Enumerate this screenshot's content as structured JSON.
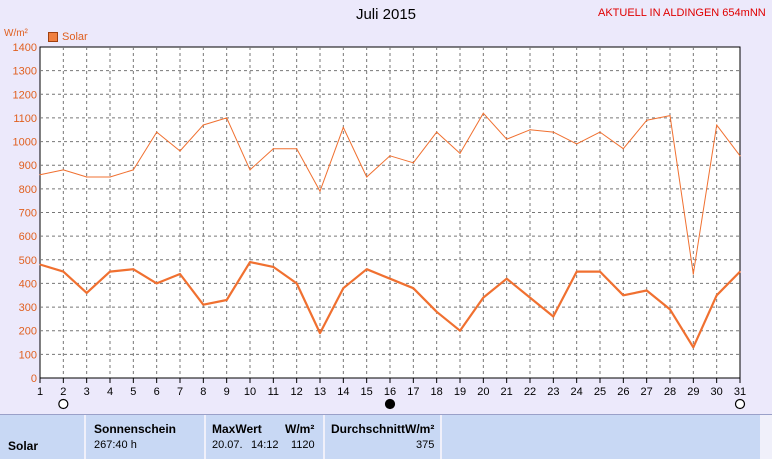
{
  "title": "Juli 2015",
  "station": "AKTUELL IN ALDINGEN 654mNN",
  "unit": "W/m²",
  "legend_label": "Solar",
  "chart_data": {
    "type": "line",
    "title": "Juli 2015",
    "ylabel": "W/m²",
    "ylim": [
      0,
      1400
    ],
    "yticks": [
      0,
      100,
      200,
      300,
      400,
      500,
      600,
      700,
      800,
      900,
      1000,
      1100,
      1200,
      1300,
      1400
    ],
    "x": [
      1,
      2,
      3,
      4,
      5,
      6,
      7,
      8,
      9,
      10,
      11,
      12,
      13,
      14,
      15,
      16,
      17,
      18,
      19,
      20,
      21,
      22,
      23,
      24,
      25,
      26,
      27,
      28,
      29,
      30,
      31
    ],
    "grid": true,
    "legend": "top-left",
    "series": [
      {
        "name": "Solar",
        "color": "#f07030",
        "style": "thin",
        "values": [
          860,
          880,
          850,
          850,
          880,
          1040,
          960,
          1070,
          1100,
          880,
          970,
          970,
          790,
          1060,
          850,
          940,
          910,
          1040,
          950,
          1120,
          1010,
          1050,
          1040,
          990,
          1040,
          970,
          1090,
          1110,
          440,
          1070,
          940
        ]
      },
      {
        "name": "Solar",
        "color": "#f07030",
        "style": "thick",
        "values": [
          480,
          450,
          360,
          450,
          460,
          400,
          440,
          310,
          330,
          490,
          470,
          400,
          190,
          380,
          460,
          420,
          380,
          280,
          200,
          340,
          420,
          340,
          260,
          450,
          450,
          350,
          370,
          290,
          130,
          350,
          450
        ]
      }
    ]
  },
  "stats": {
    "row_label": "Solar",
    "sunshine_label": "Sonnenschein",
    "sunshine_value": "267:40 h",
    "max_label": "MaxWert",
    "max_unit": "W/m²",
    "max_date": "20.07.",
    "max_time": "14:12",
    "max_value": "1120",
    "avg_label": "DurchschnittW/m²",
    "avg_value": "375"
  },
  "colors": {
    "background": "#ece9fb",
    "plot_bg": "#ffffff",
    "series": "#f07030",
    "axis_text": "#e06020",
    "station": "#e00000"
  }
}
